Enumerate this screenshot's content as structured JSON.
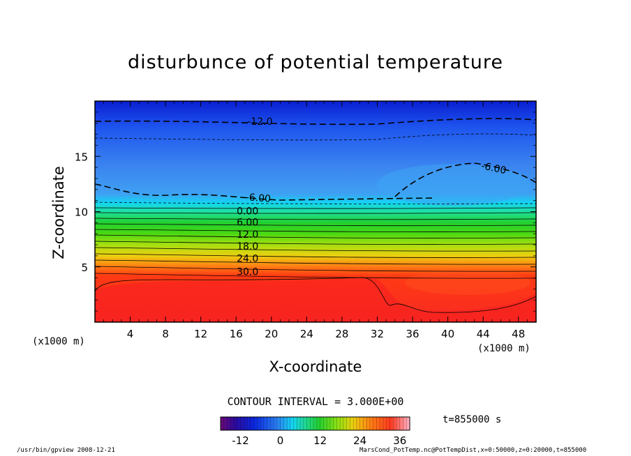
{
  "chart_data": {
    "type": "heatmap",
    "title": "disturbunce of potential temperature",
    "xlabel": "X-coordinate",
    "ylabel": "Z-coordinate",
    "x_unit_left": "(x1000 m)",
    "x_unit_right": "(x1000 m)",
    "xlim": [
      0,
      50
    ],
    "ylim": [
      0,
      20
    ],
    "x_ticks": [
      4,
      8,
      12,
      16,
      20,
      24,
      28,
      32,
      36,
      40,
      44,
      48
    ],
    "y_ticks": [
      5,
      10,
      15
    ],
    "contour_labels": [
      {
        "text": "-12.0",
        "x": 18.7,
        "z": 18.1
      },
      {
        "text": "-6.00",
        "x": 45.2,
        "z": 13.9
      },
      {
        "text": "-6.00",
        "x": 18.5,
        "z": 11.2
      },
      {
        "text": "0.00",
        "x": 17.3,
        "z": 10.0
      },
      {
        "text": "6.00",
        "x": 17.3,
        "z": 9.0
      },
      {
        "text": "12.0",
        "x": 17.3,
        "z": 7.9
      },
      {
        "text": "18.0",
        "x": 17.3,
        "z": 6.8
      },
      {
        "text": "24.0",
        "x": 17.3,
        "z": 5.7
      },
      {
        "text": "30.0",
        "x": 17.3,
        "z": 4.5
      }
    ],
    "contour_interval_text": "CONTOUR INTERVAL = 3.000E+00",
    "colorbar": {
      "min": -18,
      "max": 39,
      "ticks": [
        -12,
        0,
        12,
        24,
        36
      ]
    }
  },
  "time_text": "t=855000 s",
  "footer_left": "/usr/bin/gpview  2008-12-21",
  "footer_right": "MarsCond_PotTemp.nc@PotTempDist,x=0:50000,z=0:20000,t=855000"
}
